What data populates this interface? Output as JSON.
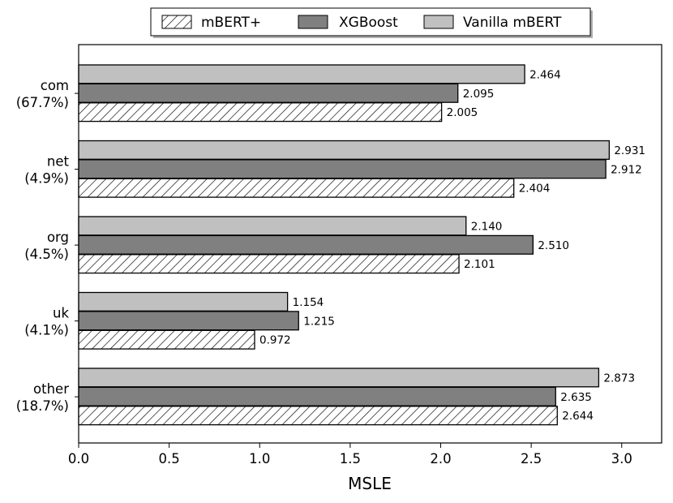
{
  "chart_data": {
    "type": "bar",
    "orientation": "horizontal",
    "title": "",
    "xlabel": "MSLE",
    "ylabel": "",
    "xlim": [
      0,
      3.2
    ],
    "xticks": [
      "0.0",
      "0.5",
      "1.0",
      "1.5",
      "2.0",
      "2.5",
      "3.0"
    ],
    "categories": [
      {
        "name": "com",
        "share": "(67.7%)"
      },
      {
        "name": "net",
        "share": "(4.9%)"
      },
      {
        "name": "org",
        "share": "(4.5%)"
      },
      {
        "name": "uk",
        "share": "(4.1%)"
      },
      {
        "name": "other",
        "share": "(18.7%)"
      }
    ],
    "series": [
      {
        "name": "mBERT+",
        "style": "hatched",
        "fill": "#ffffff",
        "values": [
          2.005,
          2.404,
          2.101,
          0.972,
          2.644
        ],
        "labels": [
          "2.005",
          "2.404",
          "2.101",
          "0.972",
          "2.644"
        ]
      },
      {
        "name": "XGBoost",
        "style": "solid",
        "fill": "#808080",
        "values": [
          2.095,
          2.912,
          2.51,
          1.215,
          2.635
        ],
        "labels": [
          "2.095",
          "2.912",
          "2.510",
          "1.215",
          "2.635"
        ]
      },
      {
        "name": "Vanilla mBERT",
        "style": "solid",
        "fill": "#c0c0c0",
        "values": [
          2.464,
          2.931,
          2.14,
          1.154,
          2.873
        ],
        "labels": [
          "2.464",
          "2.931",
          "2.140",
          "1.154",
          "2.873"
        ]
      }
    ],
    "legend_position": "top-center"
  }
}
